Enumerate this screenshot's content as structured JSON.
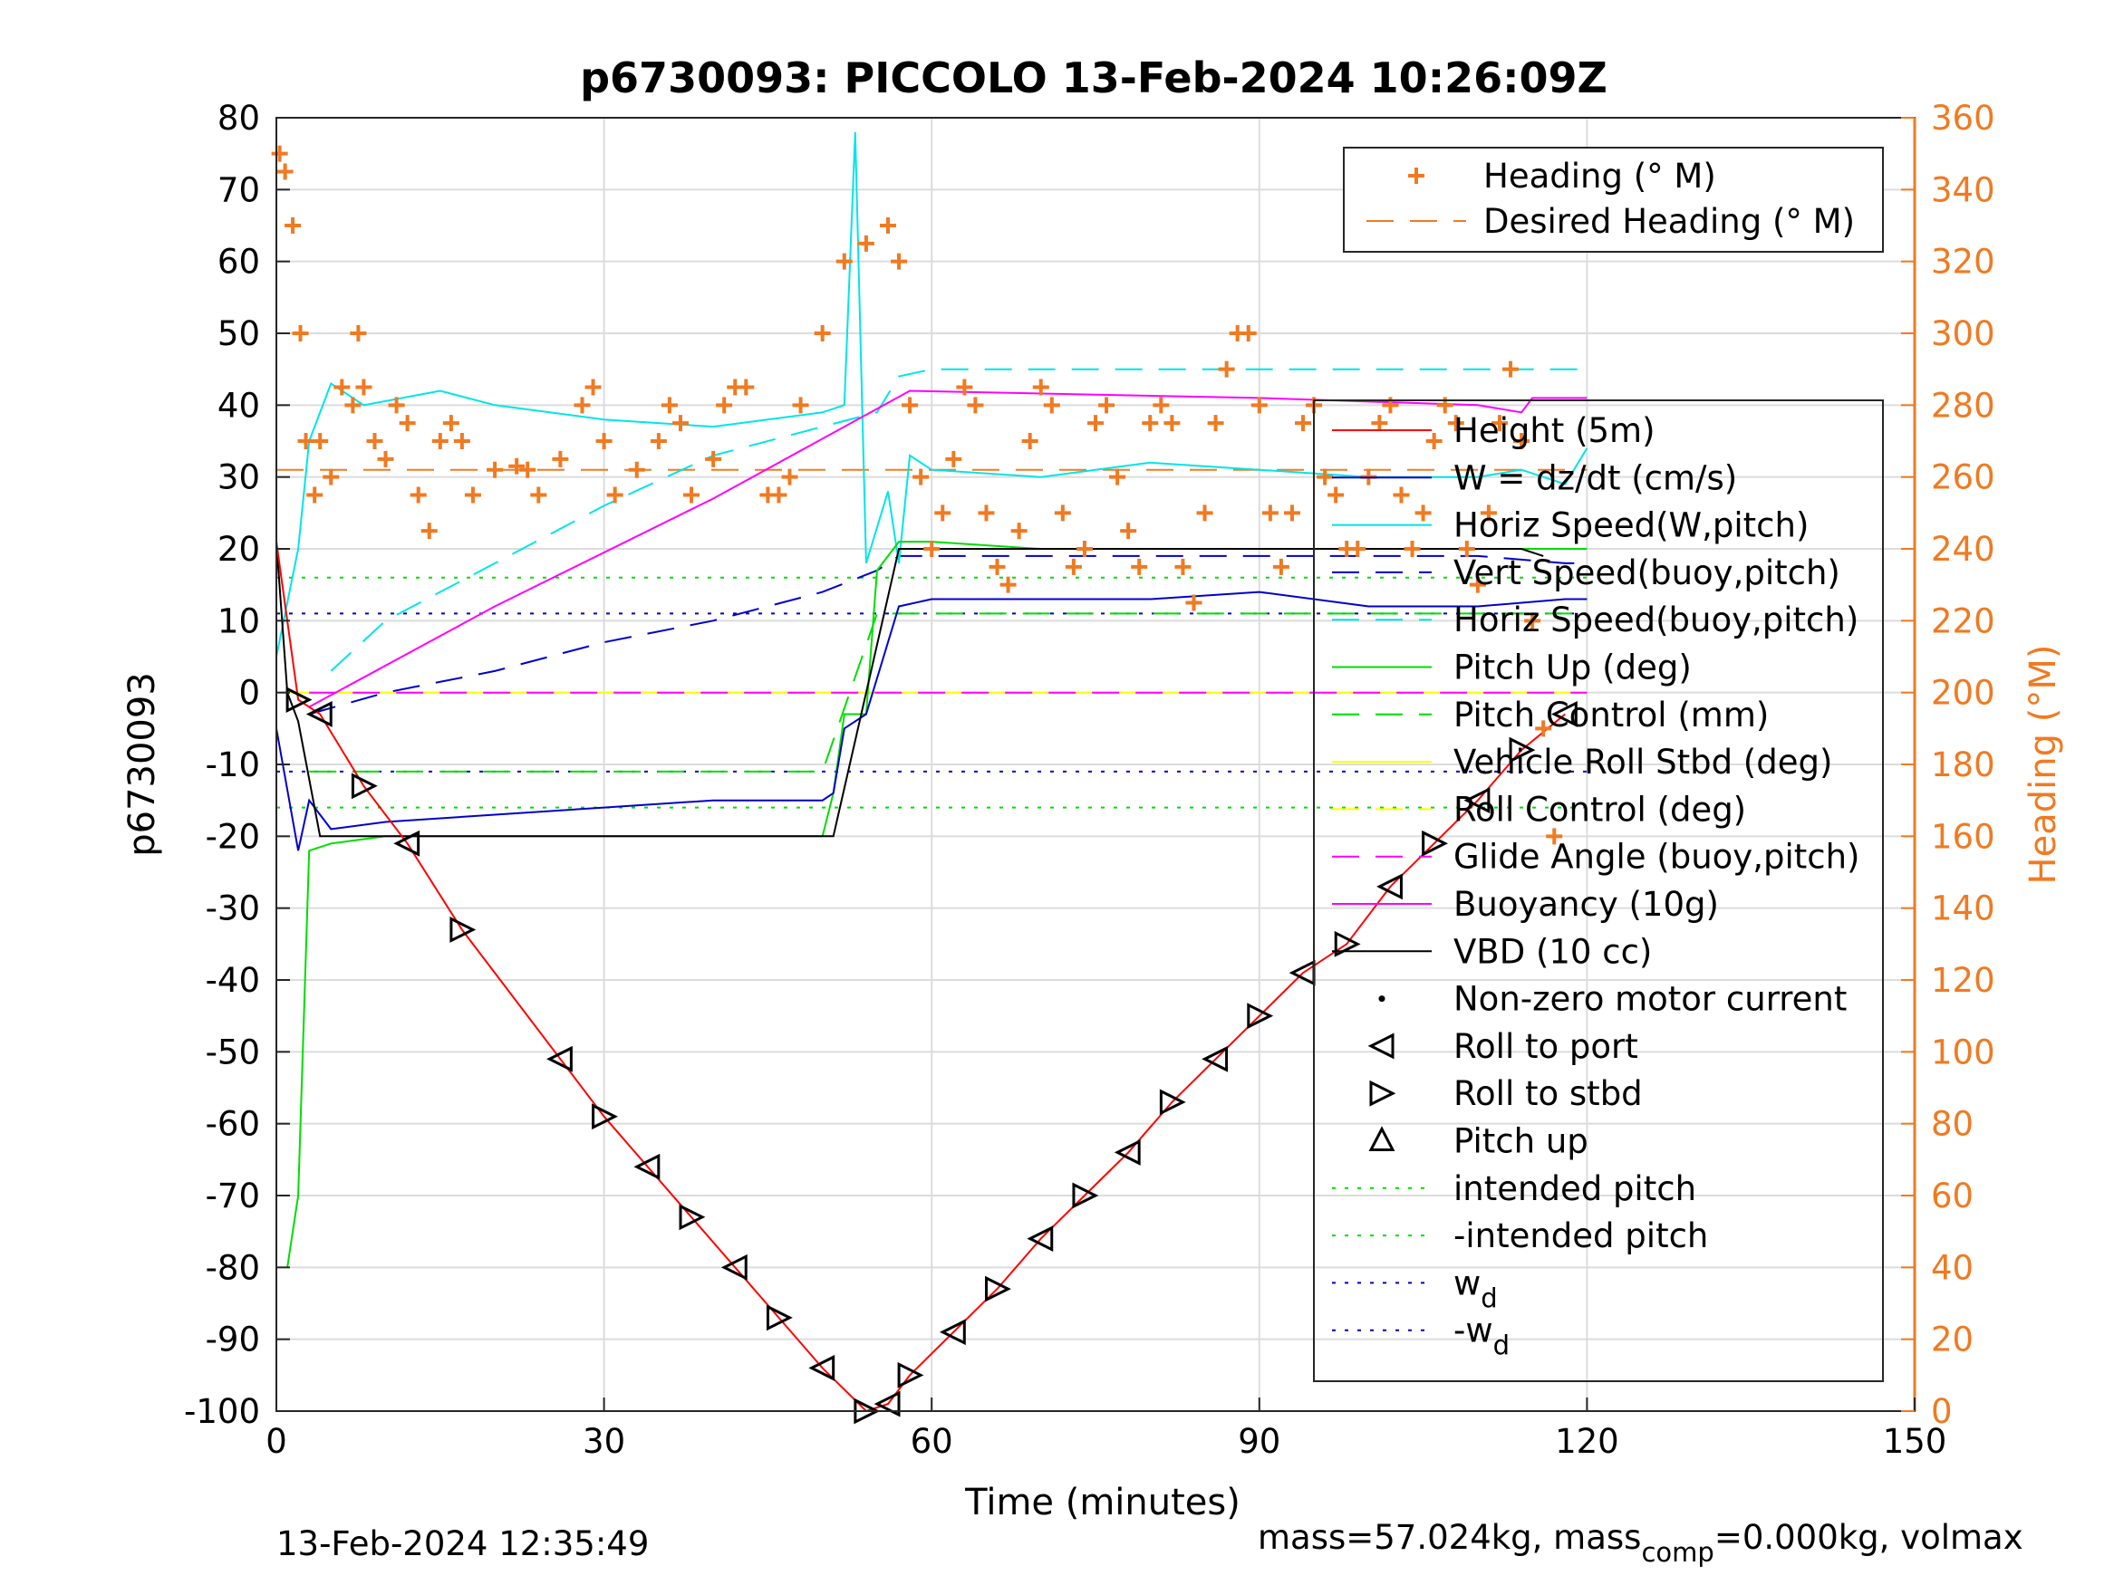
{
  "chart_data": {
    "type": "line",
    "title": "p6730093: PICCOLO 13-Feb-2024 10:26:09Z",
    "xlabel": "Time (minutes)",
    "ylabel": "p6730093",
    "ylabel_right": "Heading (°M)",
    "xlim": [
      0,
      150
    ],
    "ylim": [
      -100,
      80
    ],
    "ylim_right": [
      0,
      360
    ],
    "grid": true,
    "x_ticks": [
      "0",
      "30",
      "60",
      "90",
      "120",
      "150"
    ],
    "y_ticks": [
      "80",
      "70",
      "60",
      "50",
      "40",
      "30",
      "20",
      "10",
      "0",
      "-10",
      "-20",
      "-30",
      "-40",
      "-50",
      "-60",
      "-70",
      "-80",
      "-90",
      "-100"
    ],
    "y_ticks_right": [
      "360",
      "340",
      "320",
      "300",
      "280",
      "260",
      "240",
      "220",
      "200",
      "180",
      "160",
      "140",
      "120",
      "100",
      "80",
      "60",
      "40",
      "20",
      "0"
    ],
    "legend_heading": [
      {
        "label": "Heading (° M)",
        "color": "#f07a21",
        "style": "plus"
      },
      {
        "label": "Desired Heading (° M)",
        "color": "#f07a21",
        "style": "dash"
      }
    ],
    "legend_main": [
      {
        "label": "Height (5m)",
        "color": "#ff0000",
        "style": "solid"
      },
      {
        "label": "W = dz/dt (cm/s)",
        "color": "#0000cc",
        "style": "solid"
      },
      {
        "label": "Horiz Speed(W,pitch)",
        "color": "#00e5e5",
        "style": "solid"
      },
      {
        "label": "Vert Speed(buoy,pitch)",
        "color": "#0000cc",
        "style": "dash"
      },
      {
        "label": "Horiz Speed(buoy,pitch)",
        "color": "#00e5e5",
        "style": "dash"
      },
      {
        "label": "Pitch Up (deg)",
        "color": "#00dd00",
        "style": "solid"
      },
      {
        "label": "Pitch Control (mm)",
        "color": "#00dd00",
        "style": "dash"
      },
      {
        "label": "Vehicle Roll Stbd (deg)",
        "color": "#ffff00",
        "style": "solid"
      },
      {
        "label": "Roll Control (deg)",
        "color": "#ffff00",
        "style": "dash"
      },
      {
        "label": "Glide Angle (buoy,pitch)",
        "color": "#ff00ff",
        "style": "dash"
      },
      {
        "label": "Buoyancy (10g)",
        "color": "#ff00ff",
        "style": "solid"
      },
      {
        "label": "VBD (10 cc)",
        "color": "#000000",
        "style": "solid"
      },
      {
        "label": "Non-zero motor current",
        "color": "#000000",
        "style": "dot"
      },
      {
        "label": "Roll to port",
        "color": "#000000",
        "style": "tri-left"
      },
      {
        "label": "Roll to stbd",
        "color": "#000000",
        "style": "tri-right"
      },
      {
        "label": "Pitch up",
        "color": "#000000",
        "style": "tri-up"
      },
      {
        "label": "intended pitch",
        "color": "#00dd00",
        "style": "dotted"
      },
      {
        "label": "-intended pitch",
        "color": "#00dd00",
        "style": "dotted"
      },
      {
        "label": "w_d",
        "color": "#0000cc",
        "style": "dotted"
      },
      {
        "label": "-w_d",
        "color": "#0000cc",
        "style": "dotted"
      }
    ],
    "series": [
      {
        "name": "Height (5m)",
        "x": [
          0,
          2,
          4,
          8,
          12,
          17,
          26,
          30,
          34,
          38,
          42,
          46,
          50,
          54,
          56,
          58,
          62,
          66,
          70,
          74,
          78,
          82,
          86,
          90,
          94,
          98,
          102,
          106,
          110,
          114,
          118
        ],
        "values": [
          21,
          -1,
          -3,
          -13,
          -21,
          -33,
          -51,
          -59,
          -66,
          -73,
          -80,
          -87,
          -94,
          -100,
          -99,
          -95,
          -89,
          -83,
          -76,
          -70,
          -64,
          -57,
          -51,
          -45,
          -39,
          -35,
          -27,
          -21,
          -15,
          -8,
          -3
        ]
      },
      {
        "name": "W = dz/dt (cm/s)",
        "x": [
          0,
          2,
          3,
          5,
          10,
          20,
          30,
          40,
          50,
          51,
          52,
          54,
          57,
          60,
          70,
          80,
          90,
          100,
          110,
          118,
          120
        ],
        "values": [
          -5,
          -22,
          -15,
          -19,
          -18,
          -17,
          -16,
          -15,
          -15,
          -14,
          -5,
          -3,
          12,
          13,
          13,
          13,
          14,
          12,
          12,
          13,
          13
        ]
      },
      {
        "name": "Horiz Speed(W,pitch)",
        "x": [
          0,
          2,
          3,
          5,
          8,
          15,
          20,
          30,
          40,
          50,
          52,
          53,
          54,
          56,
          57,
          58,
          60,
          70,
          80,
          90,
          100,
          110,
          114,
          118,
          120
        ],
        "values": [
          5,
          20,
          35,
          43,
          40,
          42,
          40,
          38,
          37,
          39,
          40,
          78,
          18,
          28,
          18,
          33,
          31,
          30,
          32,
          31,
          30,
          30,
          31,
          29,
          34
        ]
      },
      {
        "name": "Vert Speed(buoy,pitch)",
        "x": [
          3,
          10,
          20,
          30,
          40,
          50,
          55,
          57,
          60,
          90,
          110,
          118,
          120
        ],
        "values": [
          -3,
          0,
          3,
          7,
          10,
          14,
          17,
          19,
          19,
          19,
          19,
          18,
          18
        ]
      },
      {
        "name": "Horiz Speed(buoy,pitch)",
        "x": [
          5,
          10,
          20,
          30,
          40,
          50,
          55,
          57,
          60,
          90,
          110,
          118,
          120
        ],
        "values": [
          3,
          10,
          18,
          26,
          33,
          37,
          39,
          44,
          45,
          45,
          45,
          45,
          45
        ]
      },
      {
        "name": "Pitch Up (deg)",
        "x": [
          1,
          2,
          3,
          5,
          10,
          20,
          30,
          40,
          50,
          51,
          52,
          54,
          55,
          57,
          60,
          70,
          80,
          90,
          100,
          110,
          118,
          120
        ],
        "values": [
          -80,
          -70,
          -22,
          -21,
          -20,
          -20,
          -20,
          -20,
          -20,
          -14,
          -3,
          -3,
          17,
          21,
          21,
          20,
          20,
          20,
          20,
          20,
          20,
          20
        ]
      },
      {
        "name": "Pitch Control (mm)",
        "x": [
          3,
          50,
          55,
          120
        ],
        "values": [
          -11,
          -11,
          11,
          11
        ]
      },
      {
        "name": "Buoyancy (10g)",
        "x": [
          3,
          20,
          40,
          58,
          90,
          110,
          114,
          115,
          120
        ],
        "values": [
          -2,
          12,
          27,
          42,
          41,
          40,
          39,
          41,
          41
        ]
      },
      {
        "name": "VBD (10 cc)",
        "x": [
          0,
          1,
          2,
          4,
          30,
          51,
          54,
          57,
          90,
          114,
          116
        ],
        "values": [
          21,
          0,
          -4,
          -20,
          -20,
          -20,
          0,
          20,
          20,
          20,
          19
        ]
      },
      {
        "name": "Vehicle Roll Stbd (deg)",
        "x": [
          0,
          120
        ],
        "values": [
          0,
          0
        ]
      },
      {
        "name": "Glide Angle (buoy,pitch)",
        "x": [
          3,
          120
        ],
        "values": [
          0,
          0
        ]
      },
      {
        "name": "intended pitch",
        "x": [
          0,
          120
        ],
        "values": [
          16,
          16
        ]
      },
      {
        "name": "-intended pitch",
        "x": [
          0,
          120
        ],
        "values": [
          -16,
          -16
        ]
      },
      {
        "name": "w_d",
        "x": [
          0,
          120
        ],
        "values": [
          11,
          11
        ]
      },
      {
        "name": "-w_d",
        "x": [
          0,
          120
        ],
        "values": [
          -11,
          -11
        ]
      },
      {
        "name": "Desired Heading (° M)",
        "axis": "right",
        "x": [
          0,
          120
        ],
        "values": [
          262,
          262
        ]
      },
      {
        "name": "Heading (° M)",
        "axis": "right",
        "x": [
          0.3,
          0.8,
          1.5,
          2.2,
          2.7,
          3.5,
          4,
          5,
          6,
          7,
          7.5,
          8,
          9,
          10,
          11,
          12,
          13,
          14,
          15,
          16,
          17,
          18,
          20,
          22,
          23,
          24,
          26,
          28,
          29,
          30,
          31,
          33,
          35,
          36,
          37,
          38,
          40,
          41,
          42,
          43,
          45,
          46,
          47,
          48,
          50,
          52,
          54,
          56,
          57,
          58,
          59,
          60,
          61,
          62,
          63,
          64,
          65,
          66,
          67,
          68,
          69,
          70,
          71,
          72,
          73,
          74,
          75,
          76,
          77,
          78,
          79,
          80,
          81,
          82,
          83,
          84,
          85,
          86,
          87,
          88,
          89,
          90,
          91,
          92,
          93,
          94,
          95,
          96,
          97,
          98,
          99,
          100,
          101,
          102,
          103,
          104,
          105,
          106,
          107,
          108,
          109,
          110,
          111,
          112,
          113,
          114,
          115,
          116,
          117
        ],
        "values": [
          350,
          345,
          330,
          300,
          270,
          255,
          270,
          260,
          285,
          280,
          300,
          285,
          270,
          265,
          280,
          275,
          255,
          245,
          270,
          275,
          270,
          255,
          262,
          263,
          262,
          255,
          265,
          280,
          285,
          270,
          255,
          262,
          270,
          280,
          275,
          255,
          265,
          280,
          285,
          285,
          255,
          255,
          260,
          280,
          300,
          320,
          325,
          330,
          320,
          280,
          260,
          240,
          250,
          265,
          285,
          280,
          250,
          235,
          230,
          245,
          270,
          285,
          280,
          250,
          235,
          240,
          275,
          280,
          260,
          245,
          235,
          275,
          280,
          275,
          235,
          225,
          250,
          275,
          290,
          300,
          300,
          280,
          250,
          235,
          250,
          275,
          280,
          260,
          255,
          240,
          240,
          260,
          275,
          280,
          255,
          240,
          250,
          270,
          280,
          275,
          240,
          230,
          250,
          275,
          290,
          270,
          220,
          190,
          160
        ]
      }
    ]
  },
  "footer": {
    "timestamp": "13-Feb-2024 12:35:49",
    "mass_text": "mass=57.024kg, mass",
    "mass_sub": "comp",
    "mass_rest": "=0.000kg, volmax"
  }
}
